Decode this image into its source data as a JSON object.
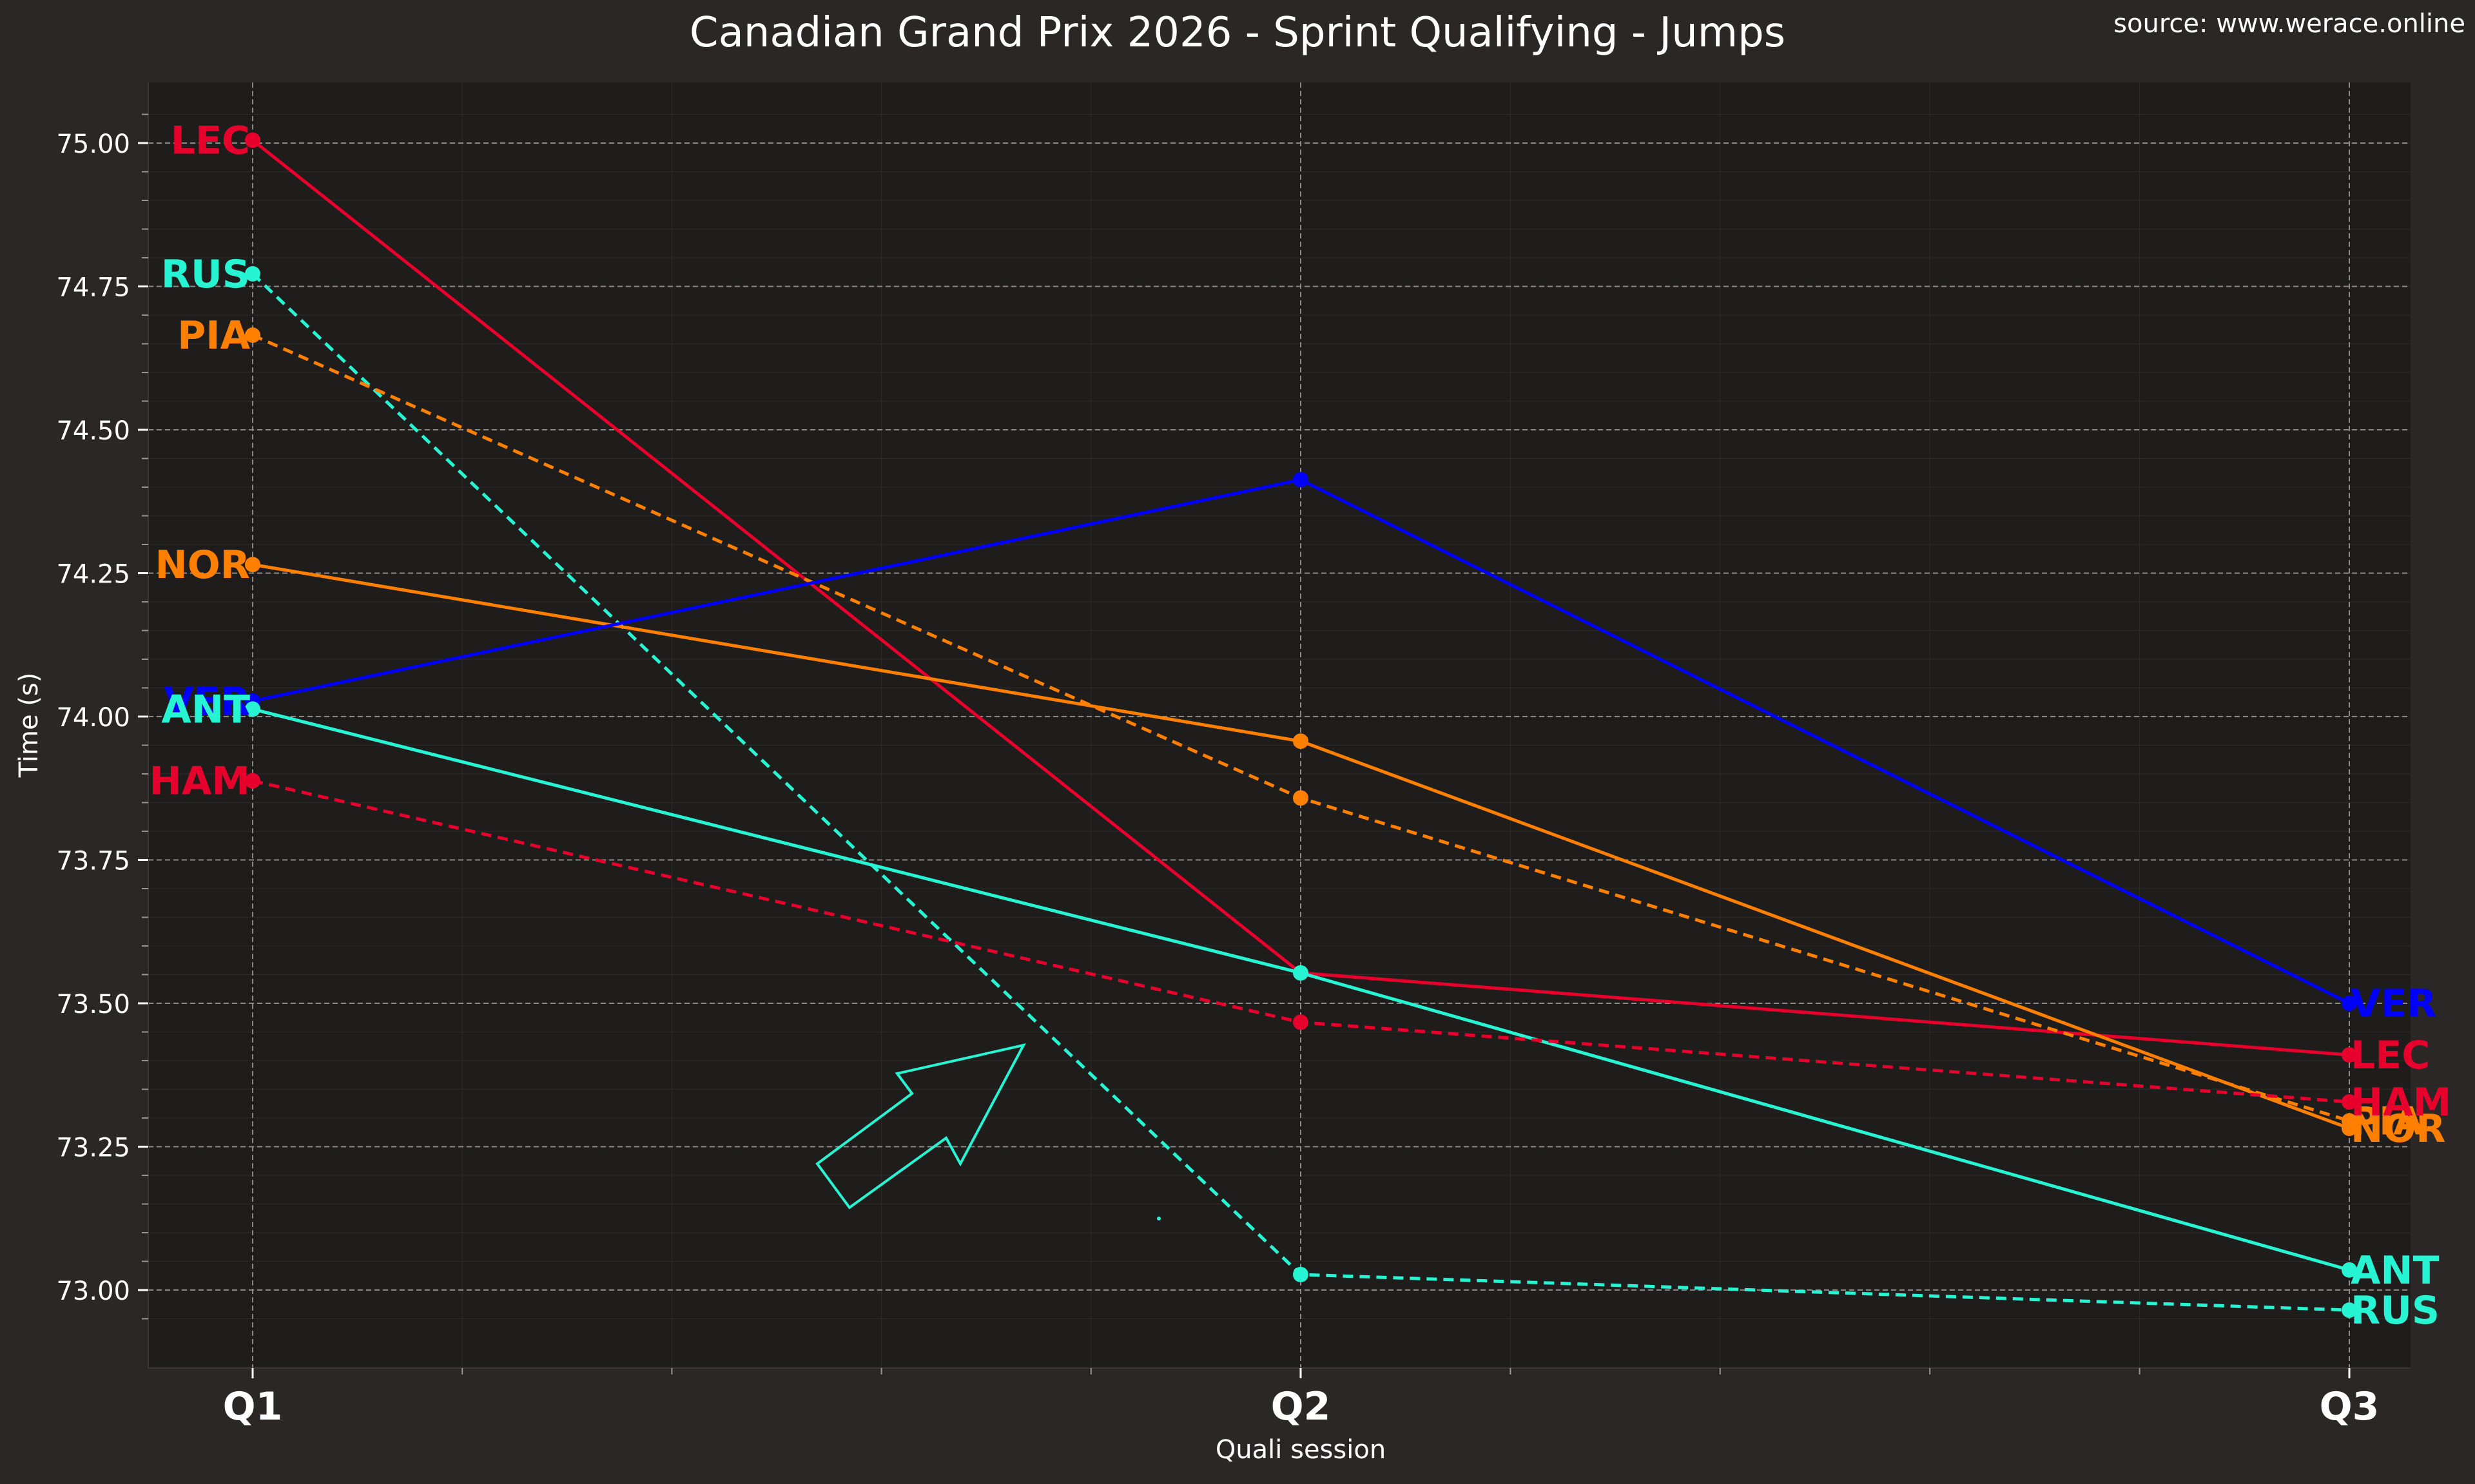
{
  "header": {
    "source": "source: www.werace.online"
  },
  "chart_data": {
    "type": "line",
    "title": "Canadian Grand Prix 2026 - Sprint Qualifying - Jumps",
    "xlabel": "Quali session",
    "ylabel": "Time (s)",
    "categories": [
      "Q1",
      "Q2",
      "Q3"
    ],
    "ylim": [
      72.9,
      75.1
    ],
    "yticks": [
      73.0,
      73.25,
      73.5,
      73.75,
      74.0,
      74.25,
      74.5,
      74.75,
      75.0
    ],
    "ytick_labels": [
      "73.00",
      "73.25",
      "73.50",
      "73.75",
      "74.00",
      "74.25",
      "74.50",
      "74.75",
      "75.00"
    ],
    "grid": true,
    "series": [
      {
        "name": "LEC",
        "color": "#e8002d",
        "dash": false,
        "values": [
          75.005,
          73.553,
          73.41
        ]
      },
      {
        "name": "RUS",
        "color": "#27f4d2",
        "dash": true,
        "values": [
          74.772,
          73.027,
          72.965
        ]
      },
      {
        "name": "PIA",
        "color": "#ff8000",
        "dash": true,
        "values": [
          74.665,
          73.858,
          73.295
        ]
      },
      {
        "name": "NOR",
        "color": "#ff8000",
        "dash": false,
        "values": [
          74.265,
          73.957,
          73.282
        ]
      },
      {
        "name": "VER",
        "color": "#0000ff",
        "dash": false,
        "values": [
          74.027,
          74.413,
          73.5
        ]
      },
      {
        "name": "ANT",
        "color": "#27f4d2",
        "dash": false,
        "values": [
          74.013,
          73.553,
          73.035
        ]
      },
      {
        "name": "HAM",
        "color": "#e8002d",
        "dash": true,
        "values": [
          73.888,
          73.467,
          73.328
        ]
      }
    ]
  },
  "annotation": {
    "arrow_color": "#27f4d2"
  }
}
